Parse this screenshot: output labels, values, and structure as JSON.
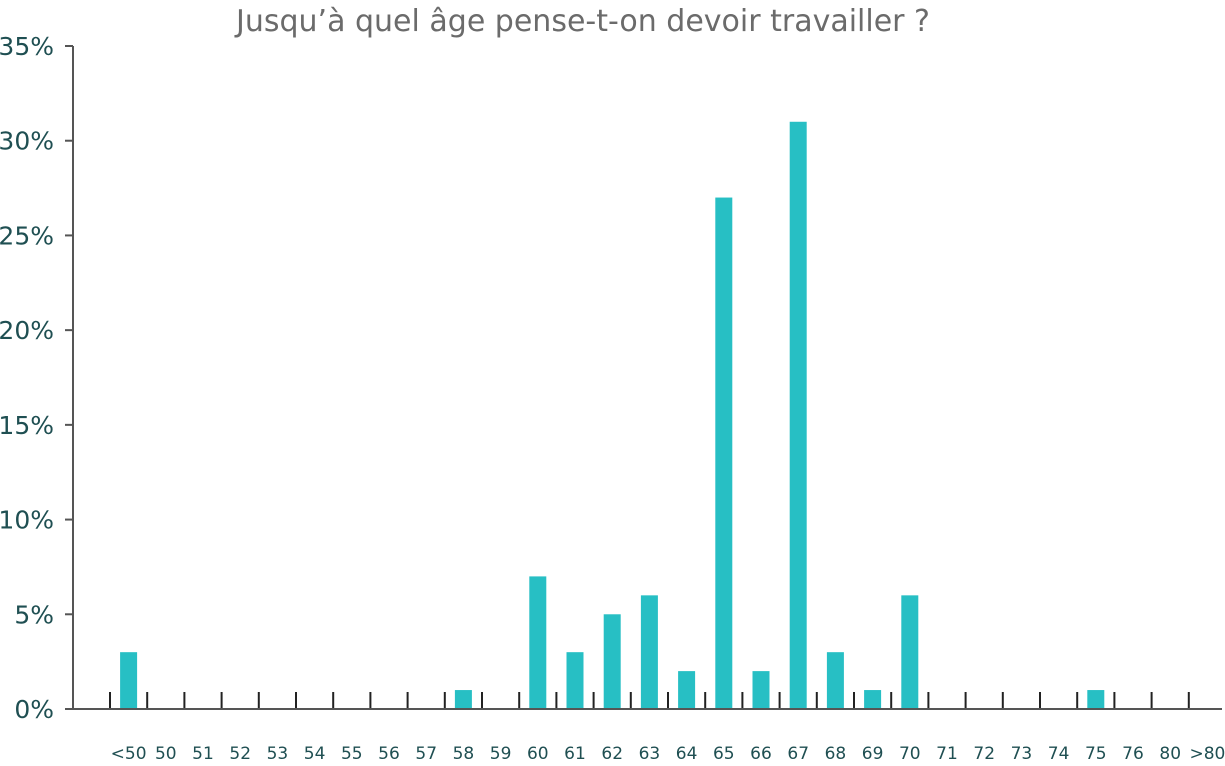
{
  "chart_data": {
    "type": "bar",
    "title": "Jusqu’à quel âge pense-t-on devoir travailler ?",
    "categories": [
      "<50",
      "50",
      "51",
      "52",
      "53",
      "54",
      "55",
      "56",
      "57",
      "58",
      "59",
      "60",
      "61",
      "62",
      "63",
      "64",
      "65",
      "66",
      "67",
      "68",
      "69",
      "70",
      "71",
      "72",
      "73",
      "74",
      "75",
      "76",
      "80",
      ">80"
    ],
    "values": [
      3,
      0,
      0,
      0,
      0,
      0,
      0,
      0,
      0,
      1,
      0,
      7,
      3,
      5,
      6,
      2,
      27,
      2,
      31,
      3,
      1,
      6,
      0,
      0,
      0,
      0,
      1,
      0,
      0,
      0
    ],
    "ylim": [
      0,
      35
    ],
    "yticks": [
      "0%",
      "5%",
      "10%",
      "15%",
      "20%",
      "25%",
      "30%",
      "35%"
    ],
    "ytick_values": [
      0,
      5,
      10,
      15,
      20,
      25,
      30,
      35
    ],
    "bar_color": "#27bfc4",
    "xlabel": "",
    "ylabel": "",
    "grid": false
  }
}
